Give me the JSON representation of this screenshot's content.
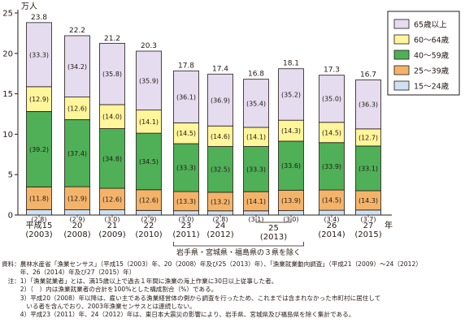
{
  "chart_data": {
    "type": "bar",
    "stacked": true,
    "ylabel": "万人",
    "ylim": [
      0,
      25
    ],
    "yticks": [
      0,
      5,
      10,
      15,
      20,
      25
    ],
    "grid": false,
    "legend_position": "top-right",
    "categories": [
      {
        "era": "平成15",
        "year": "(2003)"
      },
      {
        "era": "20",
        "year": "(2008)"
      },
      {
        "era": "21",
        "year": "(2009)"
      },
      {
        "era": "22",
        "year": "(2010)"
      },
      {
        "era": "23",
        "year": "(2011)"
      },
      {
        "era": "24",
        "year": "(2012)"
      },
      {
        "era": "",
        "year": ""
      },
      {
        "era": "",
        "year": ""
      },
      {
        "era": "26",
        "year": "(2014)"
      },
      {
        "era": "27",
        "year": "(2015)"
      }
    ],
    "year_unit": "年",
    "pair_label_era": "25",
    "pair_label_year": "(2013)",
    "excluded_note": "岩手県・宮城県・福島県の３県を除く",
    "totals": [
      23.8,
      22.2,
      21.2,
      20.3,
      17.8,
      17.4,
      16.8,
      18.1,
      17.3,
      16.7
    ],
    "series": [
      {
        "name": "15～24歳",
        "color": "#cfe0f3",
        "values": [
          0.67,
          0.64,
          0.64,
          0.57,
          0.53,
          0.52,
          0.52,
          0.54,
          0.59,
          0.62
        ],
        "labels": [
          "(2.8)",
          "(2.9)",
          "(3.0)",
          "(2.9)",
          "(3.0)",
          "(2.8)",
          "(3.1)",
          "(3.0)",
          "(3.4)",
          "(3.7)"
        ]
      },
      {
        "name": "25～39歳",
        "color": "#f3b46a",
        "values": [
          2.81,
          2.86,
          2.67,
          2.56,
          2.37,
          2.3,
          2.37,
          2.52,
          2.51,
          2.39
        ],
        "labels": [
          "(11.8)",
          "(12.9)",
          "(12.6)",
          "(12.6)",
          "(13.3)",
          "(13.2)",
          "(14.1)",
          "(13.9)",
          "(14.5)",
          "(14.3)"
        ]
      },
      {
        "name": "40～59歳",
        "color": "#4fb057",
        "values": [
          9.33,
          8.3,
          7.38,
          7.0,
          5.93,
          5.66,
          5.59,
          6.08,
          5.86,
          5.53
        ],
        "labels": [
          "(39.2)",
          "(37.4)",
          "(34.8)",
          "(34.5)",
          "(33.3)",
          "(32.5)",
          "(33.3)",
          "(33.6)",
          "(33.9)",
          "(33.1)"
        ]
      },
      {
        "name": "60～64歳",
        "color": "#fff59a",
        "values": [
          3.07,
          2.8,
          2.97,
          2.86,
          2.58,
          2.54,
          2.37,
          2.59,
          2.51,
          2.12
        ],
        "labels": [
          "(12.9)",
          "(12.6)",
          "(14.0)",
          "(14.1)",
          "(14.5)",
          "(14.6)",
          "(14.1)",
          "(14.3)",
          "(14.5)",
          "(12.7)"
        ]
      },
      {
        "name": "65歳以上",
        "color": "#e5dcef",
        "values": [
          7.93,
          7.59,
          7.59,
          7.29,
          6.43,
          6.42,
          5.95,
          6.37,
          5.83,
          6.06
        ],
        "labels": [
          "(33.3)",
          "(34.2)",
          "(35.8)",
          "(35.9)",
          "(36.1)",
          "(36.9)",
          "(35.4)",
          "(35.2)",
          "(35.0)",
          "(36.3)"
        ]
      }
    ]
  },
  "notes": [
    "資料：農林水産省「漁業センサス」（平成15（2003）年、20（2008）年及び25（2013）年）、「漁業就業動向調査」（平成21（2009）～24（2012）",
    "　　　年、26（2014）年及び27（2015）年）",
    "　注：1）「漁業就業者」とは、満15歳以上で過去１年間に漁業の海上作業に30日以上従事した者。",
    "　　　2）（　）内は漁業就業者の合計を100%とした構成割合（%）である。",
    "　　　3）平成20（2008）年以降は、雇い主である漁業経営体の側から調査を行ったため、これまでは含まれなかった市町村に居住して",
    "　　　　いる者を含んでおり、2003年漁業センサスとは連続しない。",
    "　　　4）平成23（2011）年、24（2012）年は、東日本大震災の影響により、岩手県、宮城県及び福島県を除く集計である。"
  ]
}
